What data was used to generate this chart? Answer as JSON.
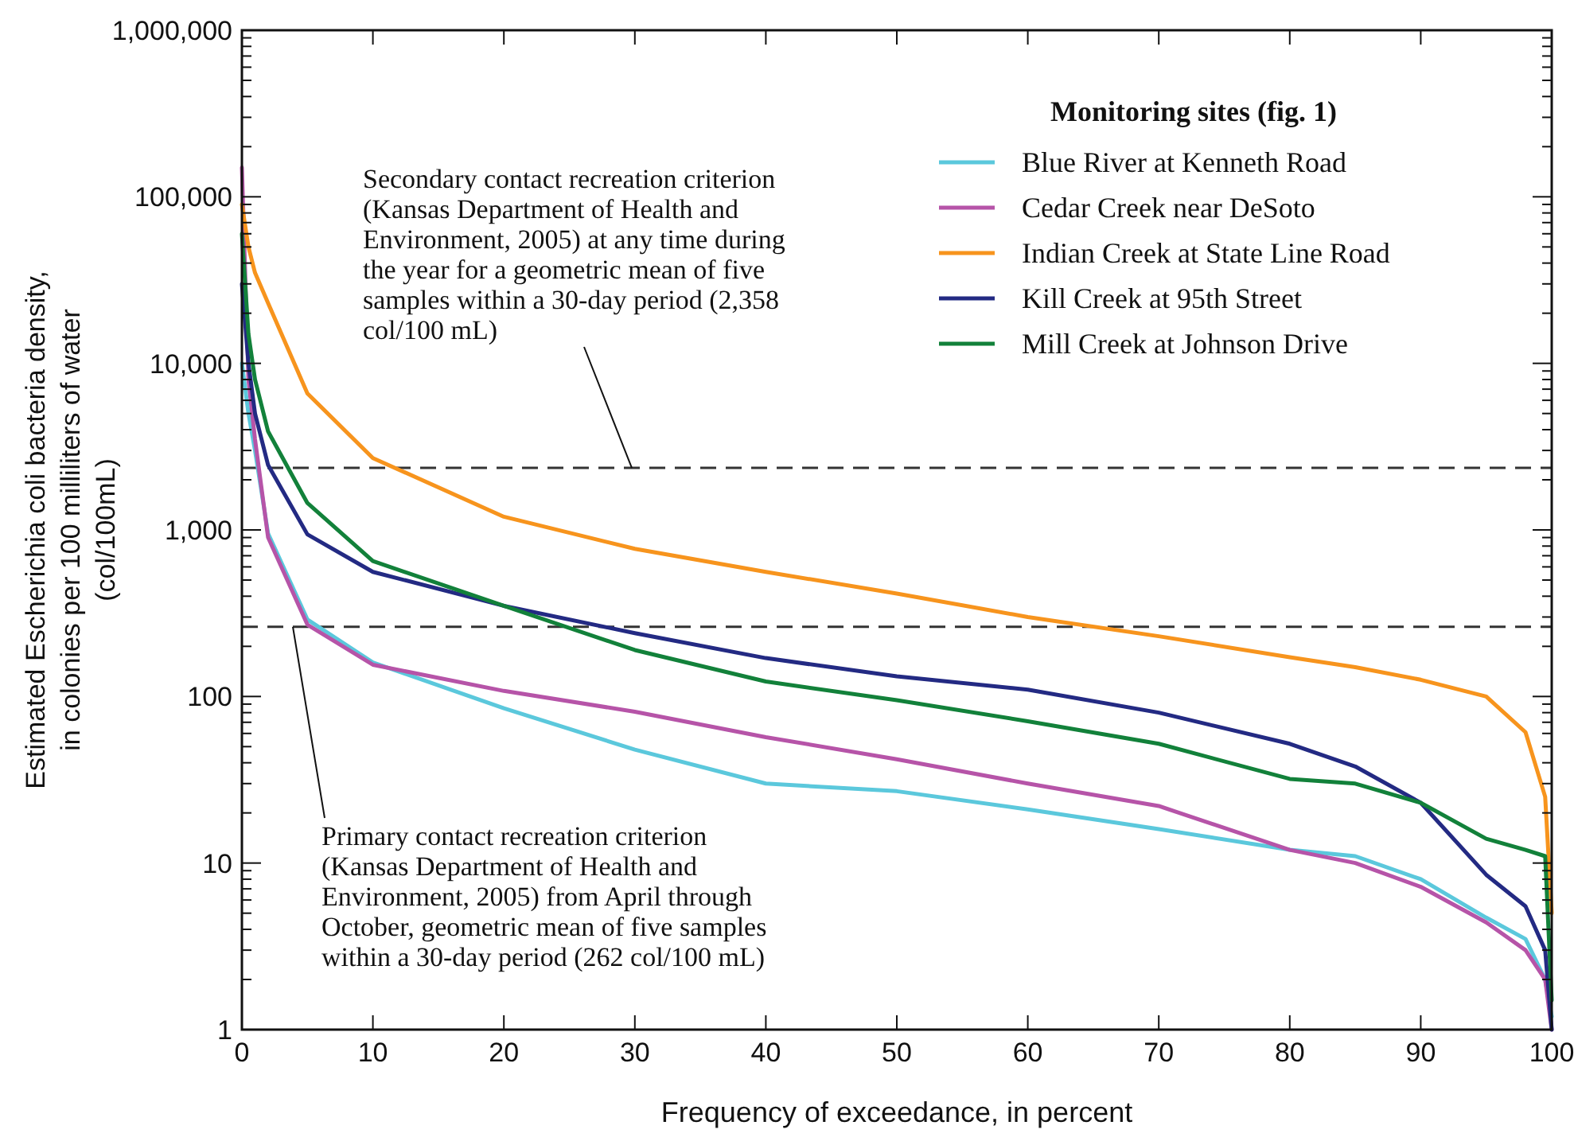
{
  "chart_data": {
    "type": "line",
    "xlabel": "Frequency of exceedance, in percent",
    "ylabel": "Estimated Escherichia coli bacteria density, in colonies per 100 milliliters of water (col/100mL)",
    "legend_title": "Monitoring sites (fig. 1)",
    "log": "y",
    "grid": false,
    "legend": "top right",
    "line_style": "solid",
    "marker": "none",
    "xlim": [
      0,
      100
    ],
    "xticks": [
      0,
      10,
      20,
      30,
      40,
      50,
      60,
      70,
      80,
      90,
      100
    ],
    "ylim": [
      1,
      1000000
    ],
    "yticks": [
      1,
      10,
      100,
      {
        "value": 1000,
        "label": "1,000"
      },
      {
        "value": 10000,
        "label": "10,000"
      },
      {
        "value": 100000,
        "label": "100,000"
      },
      {
        "value": 1000000,
        "label": "1,000,000"
      }
    ],
    "x": [
      0,
      0.5,
      1,
      2,
      5,
      10,
      20,
      30,
      40,
      50,
      60,
      70,
      80,
      85,
      90,
      95,
      98,
      99.5,
      100
    ],
    "series": [
      {
        "name": "Blue River at Kenneth Road",
        "color": "#5bc8dc",
        "values": [
          10000,
          5000,
          3000,
          950,
          290,
          160,
          85,
          48,
          30,
          27,
          21,
          16,
          12,
          11,
          8,
          4.7,
          3.5,
          2,
          1.2
        ]
      },
      {
        "name": "Cedar Creek near DeSoto",
        "color": "#b654a8",
        "values": [
          150000,
          8000,
          3500,
          900,
          270,
          155,
          108,
          81,
          57,
          42,
          30,
          22,
          12,
          10,
          7.2,
          4.4,
          3,
          2,
          1
        ]
      },
      {
        "name": "Indian Creek at State Line Road",
        "color": "#f7941d",
        "values": [
          90000,
          50000,
          35000,
          23000,
          6600,
          2700,
          1200,
          770,
          560,
          415,
          300,
          230,
          172,
          150,
          126,
          100,
          61,
          25,
          5
        ]
      },
      {
        "name": "Kill Creek at 95th Street",
        "color": "#232a83",
        "values": [
          30000,
          10000,
          5000,
          2450,
          940,
          560,
          350,
          240,
          170,
          132,
          110,
          80,
          52,
          38,
          23,
          8.5,
          5.5,
          3,
          1
        ]
      },
      {
        "name": "Mill Creek at Johnson Drive",
        "color": "#12813a",
        "values": [
          60000,
          15000,
          8000,
          3900,
          1450,
          650,
          350,
          190,
          123,
          95,
          71,
          52,
          32,
          30,
          23,
          14,
          12,
          11,
          1.5
        ]
      }
    ],
    "ref_lines": [
      {
        "axis": "y",
        "value": 2358,
        "label": "Secondary contact recreation criterion (Kansas Department of Health and Environment, 2005) at any time during the year for a geometric mean of five samples within a 30-day period (2,358 col/100 mL)",
        "color": "#333333",
        "line_style": "dashed"
      },
      {
        "axis": "y",
        "value": 262,
        "label": "Primary contact recreation criterion (Kansas Department of Health and Environment, 2005) from April through October, geometric mean of five samples within a 30-day period (262 col/100 mL)",
        "color": "#333333",
        "line_style": "dashed"
      }
    ]
  }
}
